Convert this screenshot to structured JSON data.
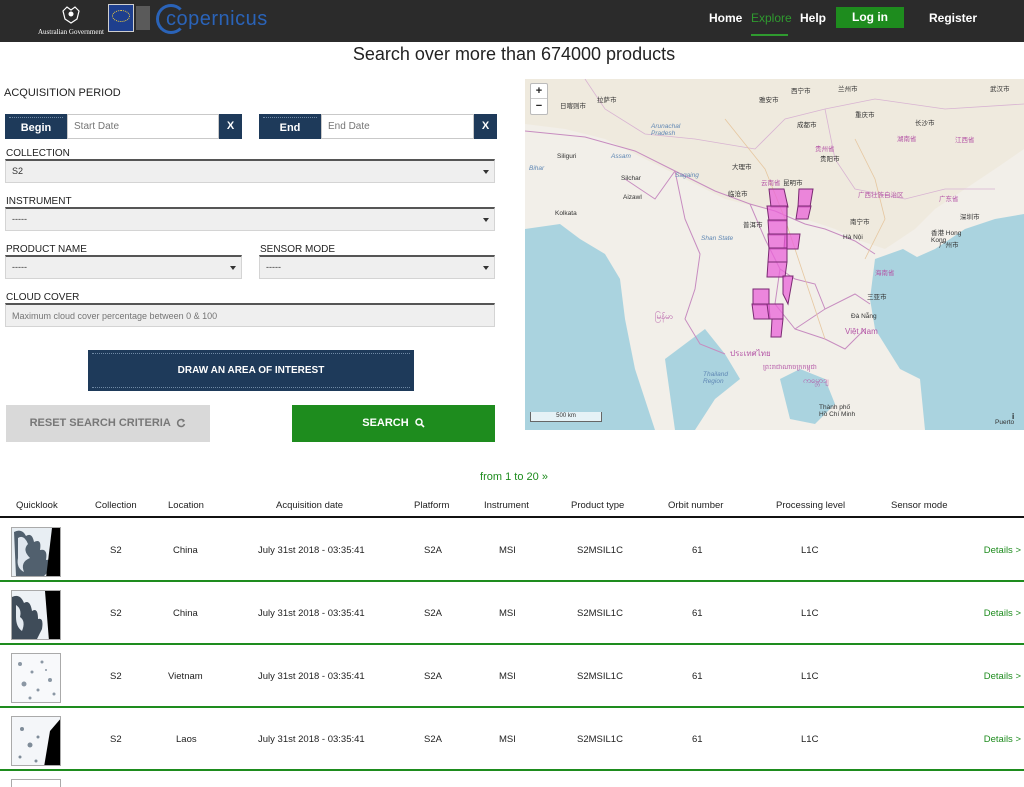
{
  "header": {
    "gov_logo_text": "Australian Government",
    "copernicus_logo": "copernicus",
    "nav": {
      "home": "Home",
      "explore": "Explore",
      "help": "Help",
      "login": "Log in",
      "register": "Register"
    },
    "accent_color": "#1e8c1e"
  },
  "headline": "Search over more than 674000 products",
  "form": {
    "acquisition_label": "ACQUISITION PERIOD",
    "begin_label": "Begin",
    "begin_placeholder": "Start Date",
    "end_label": "End",
    "end_placeholder": "End Date",
    "clear_label": "X",
    "collection_label": "COLLECTION",
    "collection_value": "S2",
    "instrument_label": "INSTRUMENT",
    "instrument_value": "-----",
    "product_label": "PRODUCT NAME",
    "product_value": "-----",
    "sensor_label": "SENSOR MODE",
    "sensor_value": "-----",
    "cloud_label": "CLOUD COVER",
    "cloud_placeholder": "Maximum cloud cover percentage between 0 & 100",
    "draw_button": "DRAW AN AREA OF INTEREST",
    "reset_button": "RESET SEARCH CRITERIA",
    "search_button": "SEARCH"
  },
  "map": {
    "zoom_in": "+",
    "zoom_out": "−",
    "scale": "500 km",
    "info": "i",
    "labels": [
      {
        "text": "拉萨市",
        "cls": ""
      },
      {
        "text": "日喀则市",
        "cls": ""
      },
      {
        "text": "Arunachal Pradesh",
        "cls": "blue"
      },
      {
        "text": "Siliguri",
        "cls": ""
      },
      {
        "text": "Assam",
        "cls": "blue"
      },
      {
        "text": "Bihar",
        "cls": "blue"
      },
      {
        "text": "Silchar",
        "cls": ""
      },
      {
        "text": "Aizawl",
        "cls": ""
      },
      {
        "text": "Kolkata",
        "cls": ""
      },
      {
        "text": "Shan State",
        "cls": "blue"
      },
      {
        "text": "Sagaing",
        "cls": "blue"
      },
      {
        "text": "西宁市",
        "cls": ""
      },
      {
        "text": "兰州市",
        "cls": ""
      },
      {
        "text": "雅安市",
        "cls": ""
      },
      {
        "text": "贵阳市",
        "cls": ""
      },
      {
        "text": "昆明市",
        "cls": ""
      },
      {
        "text": "大理市",
        "cls": ""
      },
      {
        "text": "临沧市",
        "cls": ""
      },
      {
        "text": "普洱市",
        "cls": ""
      },
      {
        "text": "Hà Nội",
        "cls": ""
      },
      {
        "text": "南宁市",
        "cls": ""
      },
      {
        "text": "香港 Hong Kong",
        "cls": ""
      },
      {
        "text": "三亚市",
        "cls": ""
      },
      {
        "text": "Đà Nẵng",
        "cls": ""
      },
      {
        "text": "Việt Nam",
        "cls": "pink"
      },
      {
        "text": "ประเทศไทย",
        "cls": "pink"
      },
      {
        "text": "Thailand Region",
        "cls": "blue"
      },
      {
        "text": "Thành phố Hồ Chí Minh",
        "cls": ""
      },
      {
        "text": "Puerto",
        "cls": ""
      },
      {
        "text": "云南省",
        "cls": "pink"
      },
      {
        "text": "贵州省",
        "cls": "pink"
      },
      {
        "text": "广西壮族自治区",
        "cls": "pink"
      },
      {
        "text": "广东省",
        "cls": "pink"
      },
      {
        "text": "江西省",
        "cls": "pink"
      },
      {
        "text": "湖南省",
        "cls": "pink"
      },
      {
        "text": "长沙市",
        "cls": ""
      },
      {
        "text": "武汉市",
        "cls": ""
      },
      {
        "text": "重庆市",
        "cls": ""
      },
      {
        "text": "成都市",
        "cls": ""
      },
      {
        "text": "广州市",
        "cls": ""
      },
      {
        "text": "深圳市",
        "cls": ""
      },
      {
        "text": "海南省",
        "cls": "pink"
      },
      {
        "text": "မြန်မာ",
        "cls": "pink"
      },
      {
        "text": "ကမ္ဘောဒျ",
        "cls": "pink"
      },
      {
        "text": "ព្រះរាជាណាចក្រកម្ពុជា",
        "cls": "pink"
      }
    ]
  },
  "pagination": {
    "text": "from 1 to 20",
    "arrow": "»"
  },
  "table": {
    "headers": [
      "Quicklook",
      "Collection",
      "Location",
      "Acquisition date",
      "Platform",
      "Instrument",
      "Product type",
      "Orbit number",
      "Processing level",
      "Sensor mode"
    ],
    "rows": [
      {
        "collection": "S2",
        "location": "China",
        "date": "July 31st 2018 - 03:35:41",
        "platform": "S2A",
        "instrument": "MSI",
        "product_type": "S2MSIL1C",
        "orbit": "61",
        "level": "L1C",
        "sensor": "",
        "details": "Details >"
      },
      {
        "collection": "S2",
        "location": "China",
        "date": "July 31st 2018 - 03:35:41",
        "platform": "S2A",
        "instrument": "MSI",
        "product_type": "S2MSIL1C",
        "orbit": "61",
        "level": "L1C",
        "sensor": "",
        "details": "Details >"
      },
      {
        "collection": "S2",
        "location": "Vietnam",
        "date": "July 31st 2018 - 03:35:41",
        "platform": "S2A",
        "instrument": "MSI",
        "product_type": "S2MSIL1C",
        "orbit": "61",
        "level": "L1C",
        "sensor": "",
        "details": "Details >"
      },
      {
        "collection": "S2",
        "location": "Laos",
        "date": "July 31st 2018 - 03:35:41",
        "platform": "S2A",
        "instrument": "MSI",
        "product_type": "S2MSIL1C",
        "orbit": "61",
        "level": "L1C",
        "sensor": "",
        "details": "Details >"
      }
    ]
  }
}
